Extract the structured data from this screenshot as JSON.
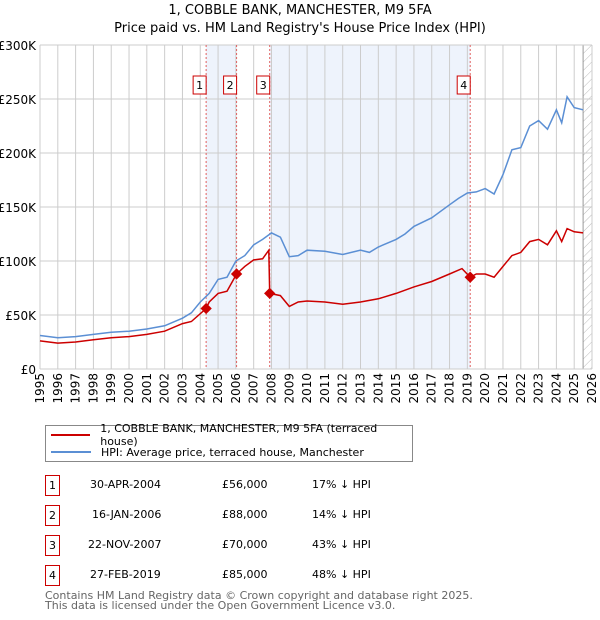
{
  "chart_data": {
    "type": "line",
    "title": "1, COBBLE BANK, MANCHESTER, M9 5FA",
    "subtitle": "Price paid vs. HM Land Registry's House Price Index (HPI)",
    "xlabel": "",
    "ylabel": "",
    "xlim": [
      1995,
      2026
    ],
    "ylim": [
      0,
      300000
    ],
    "x_ticks": [
      "1995",
      "1996",
      "1997",
      "1998",
      "1999",
      "2000",
      "2001",
      "2002",
      "2003",
      "2004",
      "2005",
      "2006",
      "2007",
      "2008",
      "2009",
      "2010",
      "2011",
      "2012",
      "2013",
      "2014",
      "2015",
      "2016",
      "2017",
      "2018",
      "2019",
      "2020",
      "2021",
      "2022",
      "2023",
      "2024",
      "2025",
      "2026"
    ],
    "y_ticks": [
      {
        "v": 0,
        "label": "£0"
      },
      {
        "v": 50000,
        "label": "£50K"
      },
      {
        "v": 100000,
        "label": "£100K"
      },
      {
        "v": 150000,
        "label": "£150K"
      },
      {
        "v": 200000,
        "label": "£200K"
      },
      {
        "v": 250000,
        "label": "£250K"
      },
      {
        "v": 300000,
        "label": "£300K"
      }
    ],
    "grid": true,
    "shaded_ranges": [
      [
        2004.33,
        2006.04
      ],
      [
        2007.9,
        2019.16
      ]
    ],
    "hatched_from": 2025.5,
    "series": [
      {
        "name": "1, COBBLE BANK, MANCHESTER, M9 5FA (terraced house)",
        "color": "#cc0000",
        "x": [
          1995,
          1996,
          1997,
          1998,
          1999,
          2000,
          2001,
          2002,
          2003,
          2003.5,
          2004.33,
          2004.5,
          2005,
          2005.5,
          2006.04,
          2006.5,
          2007,
          2007.5,
          2007.85,
          2007.9,
          2008.5,
          2009,
          2009.5,
          2010,
          2011,
          2012,
          2013,
          2014,
          2015,
          2016,
          2017,
          2018,
          2018.7,
          2019.16,
          2019.5,
          2020,
          2020.5,
          2021,
          2021.5,
          2022,
          2022.5,
          2023,
          2023.5,
          2024,
          2024.3,
          2024.6,
          2025,
          2025.5
        ],
        "y": [
          26000,
          24000,
          25000,
          27000,
          29000,
          30000,
          32000,
          35000,
          42000,
          44000,
          56000,
          62000,
          70000,
          72000,
          88000,
          95000,
          101000,
          102000,
          110000,
          70000,
          68000,
          58000,
          62000,
          63000,
          62000,
          60000,
          62000,
          65000,
          70000,
          76000,
          81000,
          88000,
          93000,
          85000,
          88000,
          88000,
          85000,
          95000,
          105000,
          108000,
          118000,
          120000,
          115000,
          128000,
          118000,
          130000,
          127000,
          126000
        ]
      },
      {
        "name": "HPI: Average price, terraced house, Manchester",
        "color": "#5b8fd4",
        "x": [
          1995,
          1996,
          1997,
          1998,
          1999,
          2000,
          2001,
          2002,
          2003,
          2003.5,
          2004,
          2004.5,
          2005,
          2005.5,
          2006,
          2006.5,
          2007,
          2007.5,
          2008,
          2008.5,
          2009,
          2009.5,
          2010,
          2011,
          2012,
          2013,
          2013.5,
          2014,
          2015,
          2015.5,
          2016,
          2017,
          2018,
          2018.5,
          2019,
          2019.5,
          2020,
          2020.5,
          2021,
          2021.5,
          2022,
          2022.5,
          2023,
          2023.5,
          2024,
          2024.3,
          2024.6,
          2025,
          2025.5
        ],
        "y": [
          31000,
          29000,
          30000,
          32000,
          34000,
          35000,
          37000,
          40000,
          47000,
          52000,
          62000,
          70000,
          83000,
          85000,
          100000,
          105000,
          115000,
          120000,
          126000,
          122000,
          104000,
          105000,
          110000,
          109000,
          106000,
          110000,
          108000,
          113000,
          120000,
          125000,
          132000,
          140000,
          152000,
          158000,
          163000,
          164000,
          167000,
          162000,
          180000,
          203000,
          205000,
          225000,
          230000,
          222000,
          240000,
          228000,
          252000,
          242000,
          240000
        ]
      }
    ],
    "markers": [
      {
        "label": "1",
        "x": 2004.33,
        "y": 56000
      },
      {
        "label": "2",
        "x": 2006.04,
        "y": 88000
      },
      {
        "label": "3",
        "x": 2007.9,
        "y": 70000
      },
      {
        "label": "4",
        "x": 2019.16,
        "y": 85000
      }
    ]
  },
  "legend": {
    "red": "1, COBBLE BANK, MANCHESTER, M9 5FA (terraced house)",
    "blue": "HPI: Average price, terraced house, Manchester"
  },
  "transactions": [
    {
      "num": "1",
      "date": "30-APR-2004",
      "price": "£56,000",
      "hpi": "17% ↓ HPI"
    },
    {
      "num": "2",
      "date": "16-JAN-2006",
      "price": "£88,000",
      "hpi": "14% ↓ HPI"
    },
    {
      "num": "3",
      "date": "22-NOV-2007",
      "price": "£70,000",
      "hpi": "43% ↓ HPI"
    },
    {
      "num": "4",
      "date": "27-FEB-2019",
      "price": "£85,000",
      "hpi": "48% ↓ HPI"
    }
  ],
  "footer": {
    "line1": "Contains HM Land Registry data © Crown copyright and database right 2025.",
    "line2": "This data is licensed under the Open Government Licence v3.0."
  }
}
